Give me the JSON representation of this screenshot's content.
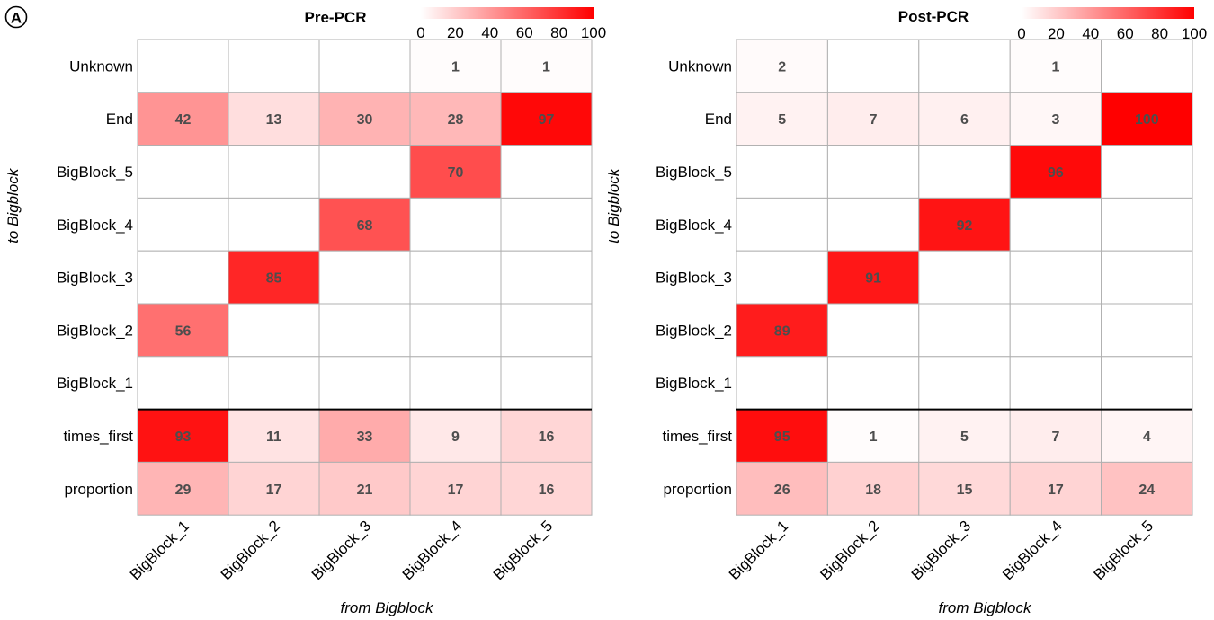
{
  "panel_label": "A",
  "chart_data": [
    {
      "type": "heatmap",
      "title": "Pre-PCR",
      "xlabel": "from Bigblock",
      "ylabel": "to Bigblock",
      "x_categories": [
        "BigBlock_1",
        "BigBlock_2",
        "BigBlock_3",
        "BigBlock_4",
        "BigBlock_5"
      ],
      "y_categories": [
        "Unknown",
        "End",
        "BigBlock_5",
        "BigBlock_4",
        "BigBlock_3",
        "BigBlock_2",
        "BigBlock_1",
        "times_first",
        "proportion"
      ],
      "values": [
        [
          null,
          null,
          null,
          1,
          1
        ],
        [
          42,
          13,
          30,
          28,
          97
        ],
        [
          null,
          null,
          null,
          70,
          null
        ],
        [
          null,
          null,
          68,
          null,
          null
        ],
        [
          null,
          85,
          null,
          null,
          null
        ],
        [
          56,
          null,
          null,
          null,
          null
        ],
        [
          null,
          null,
          null,
          null,
          null
        ],
        [
          93,
          11,
          33,
          9,
          16
        ],
        [
          29,
          17,
          21,
          17,
          16
        ]
      ],
      "separator_after_row": "BigBlock_1",
      "color_scale": {
        "min": 0,
        "max": 100,
        "low_color": "#ffffff",
        "high_color": "#ff0000",
        "ticks": [
          "0",
          "20",
          "40",
          "60",
          "80",
          "100"
        ]
      }
    },
    {
      "type": "heatmap",
      "title": "Post-PCR",
      "xlabel": "from Bigblock",
      "ylabel": "to Bigblock",
      "x_categories": [
        "BigBlock_1",
        "BigBlock_2",
        "BigBlock_3",
        "BigBlock_4",
        "BigBlock_5"
      ],
      "y_categories": [
        "Unknown",
        "End",
        "BigBlock_5",
        "BigBlock_4",
        "BigBlock_3",
        "BigBlock_2",
        "BigBlock_1",
        "times_first",
        "proportion"
      ],
      "values": [
        [
          2,
          null,
          null,
          1,
          null
        ],
        [
          5,
          7,
          6,
          3,
          100
        ],
        [
          null,
          null,
          null,
          96,
          null
        ],
        [
          null,
          null,
          92,
          null,
          null
        ],
        [
          null,
          91,
          null,
          null,
          null
        ],
        [
          89,
          null,
          null,
          null,
          null
        ],
        [
          null,
          null,
          null,
          null,
          null
        ],
        [
          95,
          1,
          5,
          7,
          4
        ],
        [
          26,
          18,
          15,
          17,
          24
        ]
      ],
      "separator_after_row": "BigBlock_1",
      "color_scale": {
        "min": 0,
        "max": 100,
        "low_color": "#ffffff",
        "high_color": "#ff0000",
        "ticks": [
          "0",
          "20",
          "40",
          "60",
          "80",
          "100"
        ]
      }
    }
  ]
}
